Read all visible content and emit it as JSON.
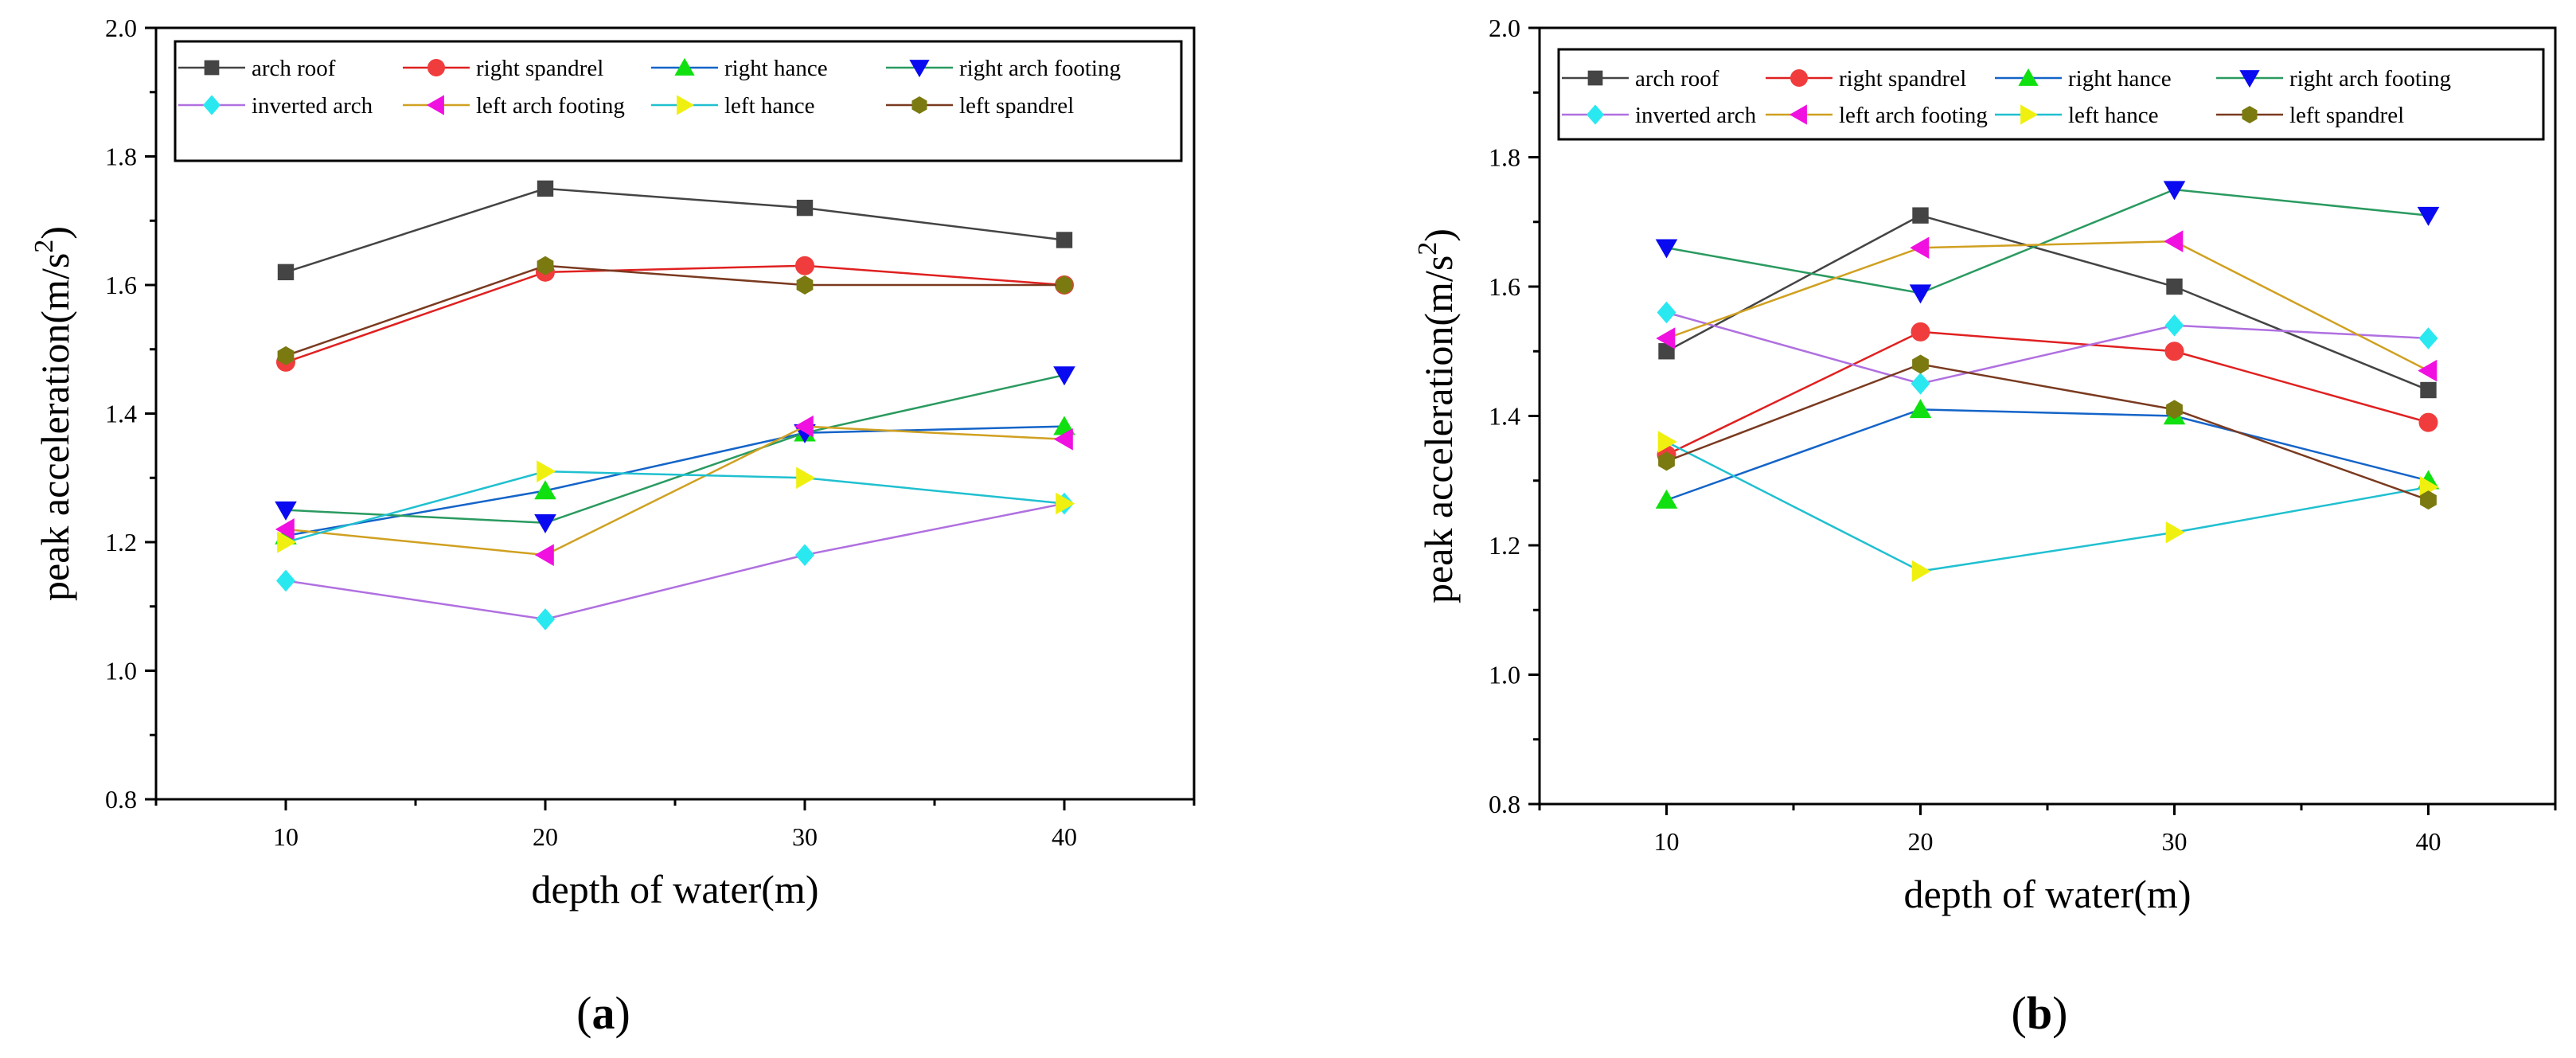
{
  "chart_data": [
    {
      "type": "line",
      "panel_label": "a",
      "xlabel": "depth of water(m)",
      "ylabel": "peak acceleration(m/s",
      "ylabel_sup": "2",
      "ylabel_close": ")",
      "x": [
        10,
        20,
        30,
        40
      ],
      "xticks": [
        "10",
        "20",
        "30",
        "40"
      ],
      "xlim": [
        5,
        45
      ],
      "ylim": [
        0.8,
        2.0
      ],
      "yticks": [
        "0.8",
        "1.0",
        "1.2",
        "1.4",
        "1.6",
        "1.8",
        "2.0"
      ],
      "legend_position": "top",
      "series": [
        {
          "name": "arch roof",
          "marker": "square",
          "line_color": "#444444",
          "marker_color": "#444444",
          "values": [
            1.62,
            1.75,
            1.72,
            1.67
          ]
        },
        {
          "name": "right spandrel",
          "marker": "circle",
          "line_color": "#e02020",
          "marker_color": "#f03c3c",
          "values": [
            1.48,
            1.62,
            1.63,
            1.6
          ]
        },
        {
          "name": "right hance",
          "marker": "triangle-up",
          "line_color": "#1464c8",
          "marker_color": "#10e010",
          "values": [
            1.21,
            1.28,
            1.37,
            1.38
          ]
        },
        {
          "name": "right arch footing",
          "marker": "triangle-down",
          "line_color": "#2a9a60",
          "marker_color": "#0a0af0",
          "values": [
            1.25,
            1.23,
            1.37,
            1.46
          ]
        },
        {
          "name": "inverted arch",
          "marker": "diamond",
          "line_color": "#b070e0",
          "marker_color": "#2ae8f0",
          "values": [
            1.14,
            1.08,
            1.18,
            1.26
          ]
        },
        {
          "name": "left arch footing",
          "marker": "triangle-left",
          "line_color": "#d0a020",
          "marker_color": "#f010e0",
          "values": [
            1.22,
            1.18,
            1.38,
            1.36
          ]
        },
        {
          "name": "left hance",
          "marker": "triangle-right",
          "line_color": "#20c0d0",
          "marker_color": "#f0f010",
          "values": [
            1.2,
            1.31,
            1.3,
            1.26
          ]
        },
        {
          "name": "left spandrel",
          "marker": "hexagon",
          "line_color": "#7a3a20",
          "marker_color": "#7a7a10",
          "values": [
            1.49,
            1.63,
            1.6,
            1.6
          ]
        }
      ]
    },
    {
      "type": "line",
      "panel_label": "b",
      "xlabel": "depth of water(m)",
      "ylabel": "peak acceleration(m/s",
      "ylabel_sup": "2",
      "ylabel_close": ")",
      "x": [
        10,
        20,
        30,
        40
      ],
      "xticks": [
        "10",
        "20",
        "30",
        "40"
      ],
      "xlim": [
        5,
        45
      ],
      "ylim": [
        0.8,
        2.0
      ],
      "yticks": [
        "0.8",
        "1.0",
        "1.2",
        "1.4",
        "1.6",
        "1.8",
        "2.0"
      ],
      "legend_position": "top",
      "series": [
        {
          "name": "arch roof",
          "marker": "square",
          "line_color": "#444444",
          "marker_color": "#444444",
          "values": [
            1.5,
            1.71,
            1.6,
            1.44
          ]
        },
        {
          "name": "right spandrel",
          "marker": "circle",
          "line_color": "#e02020",
          "marker_color": "#f03c3c",
          "values": [
            1.34,
            1.53,
            1.5,
            1.39
          ]
        },
        {
          "name": "right hance",
          "marker": "triangle-up",
          "line_color": "#1464c8",
          "marker_color": "#10e010",
          "values": [
            1.27,
            1.41,
            1.4,
            1.3
          ]
        },
        {
          "name": "right arch footing",
          "marker": "triangle-down",
          "line_color": "#2a9a60",
          "marker_color": "#0a0af0",
          "values": [
            1.66,
            1.59,
            1.75,
            1.71
          ]
        },
        {
          "name": "inverted arch",
          "marker": "diamond",
          "line_color": "#b070e0",
          "marker_color": "#2ae8f0",
          "values": [
            1.56,
            1.45,
            1.54,
            1.52
          ]
        },
        {
          "name": "left arch footing",
          "marker": "triangle-left",
          "line_color": "#d0a020",
          "marker_color": "#f010e0",
          "values": [
            1.52,
            1.66,
            1.67,
            1.47
          ]
        },
        {
          "name": "left hance",
          "marker": "triangle-right",
          "line_color": "#20c0d0",
          "marker_color": "#f0f010",
          "values": [
            1.36,
            1.16,
            1.22,
            1.29
          ]
        },
        {
          "name": "left spandrel",
          "marker": "hexagon",
          "line_color": "#7a3a20",
          "marker_color": "#7a7a10",
          "values": [
            1.33,
            1.48,
            1.41,
            1.27
          ]
        }
      ]
    }
  ]
}
